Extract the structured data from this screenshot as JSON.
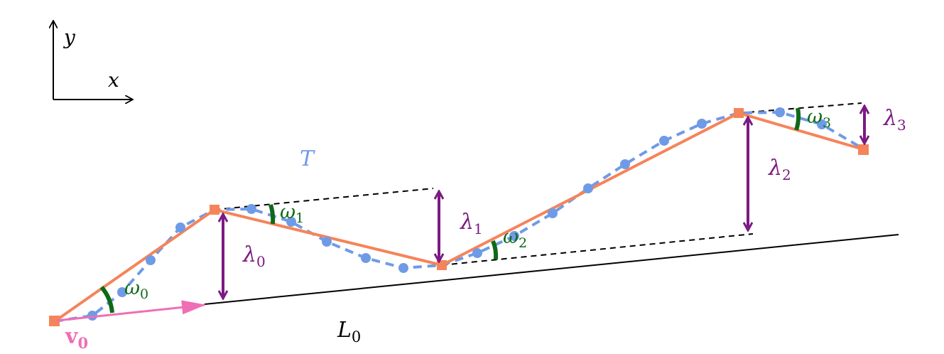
{
  "axes": {
    "y_label": "y",
    "x_label": "x"
  },
  "trajectory_label": "T",
  "baseline_label": {
    "base": "L",
    "sub": "0"
  },
  "velocity_label": {
    "base": "v",
    "sub": "0"
  },
  "lambda_labels": [
    {
      "base": "λ",
      "sub": "0"
    },
    {
      "base": "λ",
      "sub": "1"
    },
    {
      "base": "λ",
      "sub": "2"
    },
    {
      "base": "λ",
      "sub": "3"
    }
  ],
  "omega_labels": [
    {
      "base": "ω",
      "sub": "0"
    },
    {
      "base": "ω",
      "sub": "1"
    },
    {
      "base": "ω",
      "sub": "2"
    },
    {
      "base": "ω",
      "sub": "3"
    }
  ],
  "colors": {
    "segment": "#f5845a",
    "trajectory": "#6f9be6",
    "lambda": "#7b1a82",
    "omega": "#0e6a17",
    "velocity": "#f06eb4",
    "axis": "#000000",
    "dashed": "#000000"
  }
}
